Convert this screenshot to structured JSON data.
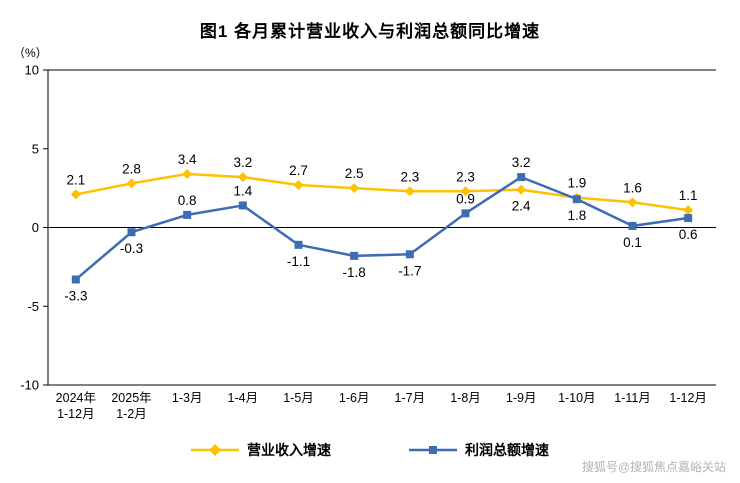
{
  "watermark": "搜狐号@搜狐焦点嘉峪关站",
  "chart_data": {
    "type": "line",
    "title": "图1  各月累计营业收入与利润总额同比增速",
    "ylabel": "（%）",
    "xlabel": "",
    "ylim": [
      -10,
      10
    ],
    "yticks": [
      10,
      5,
      0,
      -5,
      -10
    ],
    "grid": false,
    "legend_position": "bottom",
    "categories": [
      [
        "2024年",
        "1-12月"
      ],
      [
        "2025年",
        "1-2月"
      ],
      [
        "1-3月"
      ],
      [
        "1-4月"
      ],
      [
        "1-5月"
      ],
      [
        "1-6月"
      ],
      [
        "1-7月"
      ],
      [
        "1-8月"
      ],
      [
        "1-9月"
      ],
      [
        "1-10月"
      ],
      [
        "1-11月"
      ],
      [
        "1-12月"
      ]
    ],
    "series": [
      {
        "name": "营业收入增速",
        "color": "#FFC000",
        "marker": "diamond",
        "values": [
          2.1,
          2.8,
          3.4,
          3.2,
          2.7,
          2.5,
          2.3,
          2.3,
          2.4,
          1.9,
          1.6,
          1.1
        ],
        "label_positions": [
          "above",
          "above",
          "above",
          "above",
          "above",
          "above",
          "above",
          "above",
          "below",
          "above",
          "above",
          "above"
        ]
      },
      {
        "name": "利润总额增速",
        "color": "#3E6CB2",
        "marker": "square",
        "values": [
          -3.3,
          -0.3,
          0.8,
          1.4,
          -1.1,
          -1.8,
          -1.7,
          0.9,
          3.2,
          1.8,
          0.1,
          0.6
        ],
        "label_positions": [
          "below",
          "below",
          "above",
          "above",
          "below",
          "below",
          "below",
          "above",
          "above",
          "below",
          "below",
          "below"
        ]
      }
    ]
  }
}
